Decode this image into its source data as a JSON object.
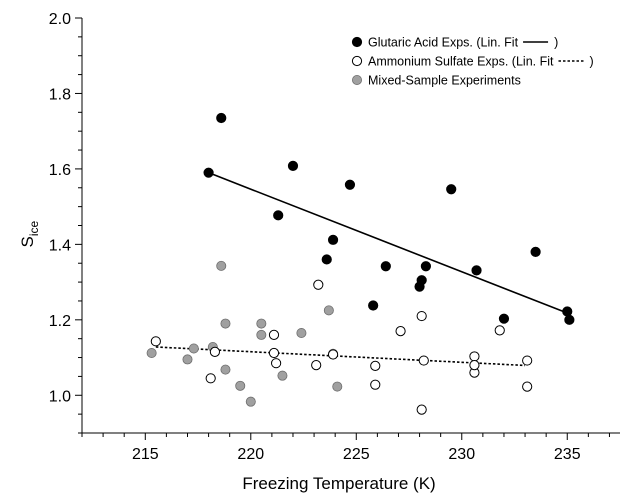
{
  "chart_data": {
    "type": "scatter",
    "xlabel": "Freezing Temperature (K)",
    "ylabel": {
      "main": "S",
      "sub": "ice"
    },
    "xlim": [
      212,
      237.5
    ],
    "ylim": [
      0.9,
      2.0
    ],
    "xticks": [
      "215",
      "220",
      "225",
      "230",
      "235"
    ],
    "yticks": [
      "1.0",
      "1.2",
      "1.4",
      "1.6",
      "1.8",
      "2.0"
    ],
    "grid": false,
    "legend_position": "top-right",
    "legend": [
      {
        "series": "glutaric",
        "label": "Glutaric Acid Exps. (Lin. Fit",
        "close": ")"
      },
      {
        "series": "ammonium",
        "label": "Ammonium Sulfate Exps. (Lin. Fit",
        "close": ")"
      },
      {
        "series": "mixed",
        "label": "Mixed-Sample Experiments"
      }
    ],
    "series": [
      {
        "id": "glutaric",
        "marker": "filled-circle",
        "color": "#000000",
        "points": [
          [
            218.0,
            1.59
          ],
          [
            218.6,
            1.735
          ],
          [
            221.3,
            1.477
          ],
          [
            222.0,
            1.608
          ],
          [
            223.6,
            1.36
          ],
          [
            223.9,
            1.412
          ],
          [
            224.7,
            1.558
          ],
          [
            225.8,
            1.238
          ],
          [
            226.4,
            1.342
          ],
          [
            228.0,
            1.288
          ],
          [
            228.1,
            1.305
          ],
          [
            228.3,
            1.342
          ],
          [
            229.5,
            1.546
          ],
          [
            230.7,
            1.331
          ],
          [
            232.0,
            1.203
          ],
          [
            233.5,
            1.38
          ],
          [
            235.0,
            1.222
          ],
          [
            235.1,
            1.2
          ]
        ],
        "fit": {
          "style": "solid",
          "x": [
            218.0,
            235.0
          ],
          "y": [
            1.59,
            1.218
          ]
        }
      },
      {
        "id": "ammonium",
        "marker": "open-circle",
        "color": "#000000",
        "points": [
          [
            215.5,
            1.143
          ],
          [
            218.1,
            1.045
          ],
          [
            218.3,
            1.115
          ],
          [
            221.1,
            1.16
          ],
          [
            221.1,
            1.112
          ],
          [
            221.2,
            1.085
          ],
          [
            223.1,
            1.08
          ],
          [
            223.2,
            1.293
          ],
          [
            223.9,
            1.108
          ],
          [
            225.9,
            1.078
          ],
          [
            225.9,
            1.028
          ],
          [
            227.1,
            1.17
          ],
          [
            228.1,
            1.21
          ],
          [
            228.1,
            0.962
          ],
          [
            228.2,
            1.092
          ],
          [
            230.6,
            1.103
          ],
          [
            230.6,
            1.06
          ],
          [
            230.6,
            1.08
          ],
          [
            231.8,
            1.172
          ],
          [
            233.1,
            1.092
          ],
          [
            233.1,
            1.023
          ]
        ],
        "fit": {
          "style": "dotted",
          "x": [
            215.5,
            233.0
          ],
          "y": [
            1.128,
            1.079
          ]
        }
      },
      {
        "id": "mixed",
        "marker": "gray-circle",
        "color": "#a0a0a0",
        "points": [
          [
            215.3,
            1.112
          ],
          [
            217.0,
            1.095
          ],
          [
            217.3,
            1.124
          ],
          [
            218.2,
            1.128
          ],
          [
            218.6,
            1.343
          ],
          [
            218.8,
            1.19
          ],
          [
            218.8,
            1.068
          ],
          [
            219.5,
            1.025
          ],
          [
            220.0,
            0.983
          ],
          [
            220.5,
            1.19
          ],
          [
            220.5,
            1.16
          ],
          [
            221.5,
            1.052
          ],
          [
            222.4,
            1.165
          ],
          [
            223.7,
            1.225
          ],
          [
            223.9,
            1.11
          ],
          [
            224.1,
            1.023
          ]
        ]
      }
    ]
  }
}
